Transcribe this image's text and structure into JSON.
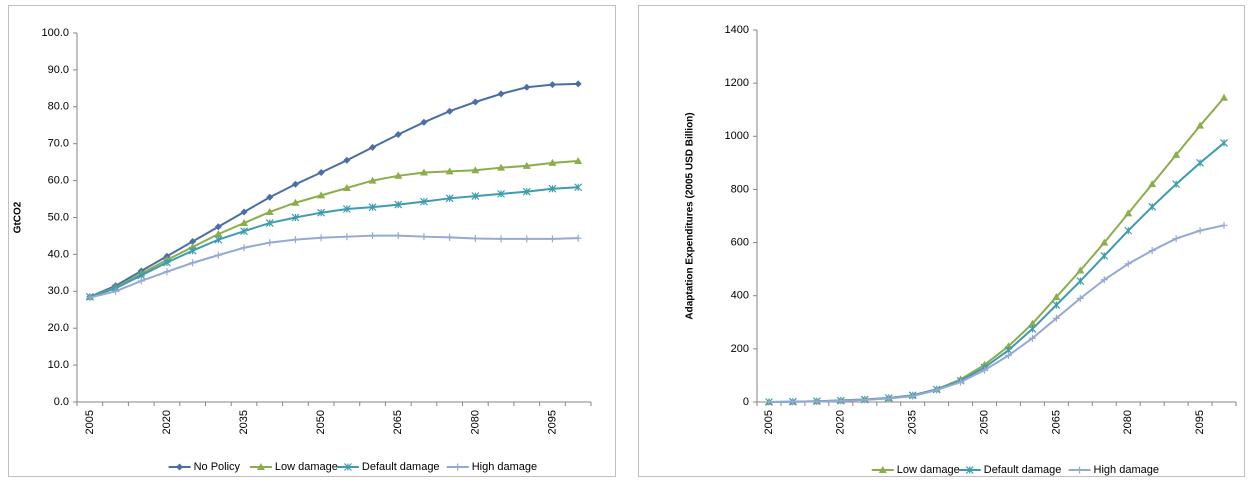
{
  "chart_data": [
    {
      "type": "line",
      "y_label": "GtCO2",
      "categories": [
        "2005",
        null,
        null,
        "2020",
        null,
        null,
        "2035",
        null,
        null,
        "2050",
        null,
        null,
        "2065",
        null,
        null,
        "2080",
        null,
        null,
        "2095",
        null
      ],
      "ylim": [
        0,
        100
      ],
      "yticks": [
        {
          "value": 0,
          "label": "0.0"
        },
        {
          "value": 10,
          "label": "10.0"
        },
        {
          "value": 20,
          "label": "20.0"
        },
        {
          "value": 30,
          "label": "30.0"
        },
        {
          "value": 40,
          "label": "40.0"
        },
        {
          "value": 50,
          "label": "50.0"
        },
        {
          "value": 60,
          "label": "60.0"
        },
        {
          "value": 70,
          "label": "70.0"
        },
        {
          "value": 80,
          "label": "80.0"
        },
        {
          "value": 90,
          "label": "90.0"
        },
        {
          "value": 100,
          "label": "100.0"
        }
      ],
      "legend": "bottom",
      "series": [
        {
          "name": "No Policy",
          "color": "#4a6fa5",
          "marker": "diamond",
          "values": [
            28.5,
            31.5,
            35.5,
            39.5,
            43.5,
            47.5,
            51.5,
            55.5,
            59,
            62.2,
            65.5,
            69,
            72.5,
            75.8,
            78.8,
            81.3,
            83.5,
            85.3,
            86,
            86.2
          ]
        },
        {
          "name": "Low damage",
          "color": "#8cad4b",
          "marker": "triangle",
          "values": [
            28.5,
            31,
            34.8,
            38.5,
            42,
            45.5,
            48.5,
            51.5,
            54,
            56,
            58,
            60,
            61.3,
            62.2,
            62.5,
            62.8,
            63.5,
            64,
            64.8,
            65.3
          ]
        },
        {
          "name": "Default damage",
          "color": "#3e9bb0",
          "marker": "star",
          "values": [
            28.5,
            30.8,
            34.3,
            37.8,
            41,
            44,
            46.3,
            48.5,
            50,
            51.3,
            52.3,
            52.8,
            53.5,
            54.3,
            55.2,
            55.8,
            56.4,
            57,
            57.8,
            58.2
          ]
        },
        {
          "name": "High damage",
          "color": "#95a9d4",
          "marker": "plus",
          "values": [
            28.3,
            30,
            32.8,
            35.3,
            37.7,
            39.8,
            41.8,
            43.2,
            44,
            44.5,
            44.8,
            45.1,
            45.1,
            44.8,
            44.6,
            44.3,
            44.2,
            44.2,
            44.2,
            44.4
          ]
        }
      ]
    },
    {
      "type": "line",
      "y_label": "Adaptation Expenditures (2005 USD Billion)",
      "categories": [
        "2005",
        null,
        null,
        "2020",
        null,
        null,
        "2035",
        null,
        null,
        "2050",
        null,
        null,
        "2065",
        null,
        null,
        "2080",
        null,
        null,
        "2095",
        null
      ],
      "ylim": [
        0,
        1400
      ],
      "yticks": [
        0,
        200,
        400,
        600,
        800,
        1000,
        1200,
        1400
      ],
      "legend": "bottom",
      "series": [
        {
          "name": "Low damage",
          "color": "#8cad4b",
          "marker": "triangle",
          "values": [
            0,
            1,
            3,
            6,
            10,
            15,
            25,
            48,
            85,
            140,
            210,
            295,
            395,
            495,
            600,
            710,
            820,
            930,
            1040,
            1145
          ]
        },
        {
          "name": "Default damage",
          "color": "#3e9bb0",
          "marker": "star",
          "values": [
            0,
            1,
            3,
            5,
            9,
            15,
            25,
            47,
            80,
            130,
            195,
            275,
            365,
            455,
            550,
            645,
            735,
            820,
            900,
            975
          ]
        },
        {
          "name": "High damage",
          "color": "#95a9d4",
          "marker": "plus",
          "values": [
            0,
            1,
            2,
            4,
            8,
            13,
            22,
            45,
            75,
            120,
            175,
            240,
            315,
            390,
            460,
            520,
            570,
            615,
            645,
            665
          ]
        }
      ]
    }
  ]
}
